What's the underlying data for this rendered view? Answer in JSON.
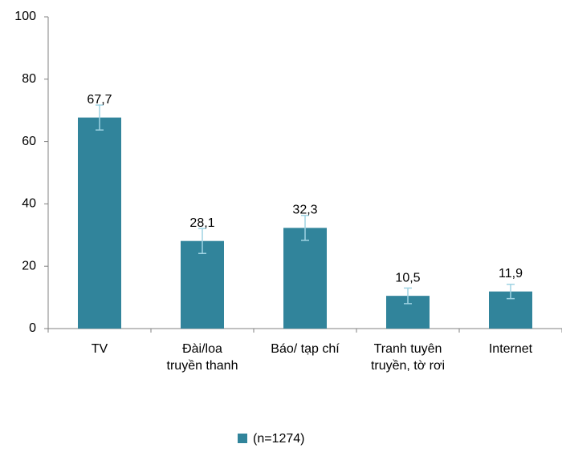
{
  "chart_data": {
    "type": "bar",
    "categories": [
      [
        "TV"
      ],
      [
        "Đài/loa",
        "truyền thanh"
      ],
      [
        "Báo/ tạp chí"
      ],
      [
        "Tranh tuyên",
        "truyền, tờ rơi"
      ],
      [
        "Internet"
      ]
    ],
    "series": [
      {
        "name": "(n=1274)",
        "color": "#31849b",
        "values": [
          67.7,
          28.1,
          32.3,
          10.5,
          11.9
        ],
        "value_labels": [
          "67,7",
          "28,1",
          "32,3",
          "10,5",
          "11,9"
        ],
        "errors": [
          4,
          4,
          4,
          2.5,
          2.3
        ]
      }
    ],
    "error_color": "#9fd3e3",
    "ylim": [
      0,
      100
    ],
    "yticks": [
      0,
      20,
      40,
      60,
      80,
      100
    ],
    "grid": false,
    "legend": "bottom"
  }
}
